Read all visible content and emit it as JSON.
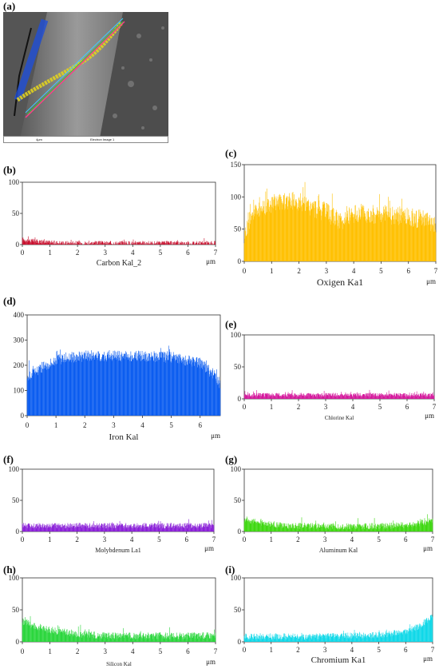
{
  "panel_letters": {
    "a": "(a)",
    "b": "(b)",
    "c": "(c)",
    "d": "(d)",
    "e": "(e)",
    "f": "(f)",
    "g": "(g)",
    "h": "(h)",
    "i": "(i)"
  },
  "sem": {
    "scale_label": "4μm",
    "image_label": "Electron Image 1"
  },
  "chart_data": [
    {
      "id": "b",
      "type": "area",
      "xlabel": "Carbon Kal_2",
      "unit": "μm",
      "xlim": [
        0,
        7
      ],
      "ylim": [
        0,
        100
      ],
      "xticks": [
        0,
        1,
        2,
        3,
        4,
        5,
        6,
        7
      ],
      "yticks": [
        0,
        50,
        100
      ],
      "color": "#c8102e",
      "profile": [
        [
          0,
          8
        ],
        [
          0.3,
          6
        ],
        [
          1,
          3
        ],
        [
          2,
          2
        ],
        [
          3,
          2
        ],
        [
          4,
          2
        ],
        [
          5,
          2
        ],
        [
          6,
          2
        ],
        [
          7,
          2
        ]
      ],
      "noise": 7
    },
    {
      "id": "c",
      "type": "area",
      "xlabel": "Oxigen Ka1",
      "unit": "μm",
      "xlim": [
        0,
        7
      ],
      "ylim": [
        0,
        150
      ],
      "xticks": [
        0,
        1,
        2,
        3,
        4,
        5,
        6,
        7
      ],
      "yticks": [
        0,
        50,
        100,
        150
      ],
      "color": "#ffc000",
      "profile": [
        [
          0,
          38
        ],
        [
          0.3,
          75
        ],
        [
          1,
          88
        ],
        [
          1.5,
          92
        ],
        [
          2,
          88
        ],
        [
          3,
          75
        ],
        [
          3.6,
          58
        ],
        [
          3.7,
          70
        ],
        [
          4.5,
          72
        ],
        [
          5.5,
          70
        ],
        [
          6.5,
          64
        ],
        [
          7,
          55
        ]
      ],
      "noise": 30
    },
    {
      "id": "d",
      "type": "area",
      "xlabel": "Iron Kal",
      "unit": "μm",
      "xlim": [
        0,
        6.7
      ],
      "ylim": [
        0,
        400
      ],
      "xticks": [
        0,
        1,
        2,
        3,
        4,
        5,
        6
      ],
      "yticks": [
        0,
        100,
        200,
        300,
        400
      ],
      "color": "#0a5cf0",
      "profile": [
        [
          0,
          150
        ],
        [
          0.5,
          190
        ],
        [
          1,
          220
        ],
        [
          2,
          235
        ],
        [
          3,
          235
        ],
        [
          4,
          235
        ],
        [
          5,
          230
        ],
        [
          6,
          205
        ],
        [
          6.5,
          160
        ],
        [
          6.7,
          120
        ]
      ],
      "noise": 45
    },
    {
      "id": "e",
      "type": "area",
      "xlabel": "Chlorine  Kal",
      "unit": "μm",
      "xlim": [
        0,
        7
      ],
      "ylim": [
        0,
        100
      ],
      "xticks": [
        0,
        1,
        2,
        3,
        4,
        5,
        6,
        7
      ],
      "yticks": [
        0,
        50,
        100
      ],
      "color": "#d4179c",
      "profile": [
        [
          0,
          6
        ],
        [
          7,
          6
        ]
      ],
      "noise": 6
    },
    {
      "id": "f",
      "type": "area",
      "xlabel": "Molybdenum   La1",
      "unit": "μm",
      "xlim": [
        0,
        7
      ],
      "ylim": [
        0,
        100
      ],
      "xticks": [
        0,
        1,
        2,
        3,
        4,
        5,
        6,
        7
      ],
      "yticks": [
        0,
        50,
        100
      ],
      "color": "#8a1fd8",
      "profile": [
        [
          0,
          9
        ],
        [
          7,
          9
        ]
      ],
      "noise": 9
    },
    {
      "id": "g",
      "type": "area",
      "xlabel": "Aluminum   Kal",
      "unit": "μm",
      "xlim": [
        0,
        7
      ],
      "ylim": [
        0,
        100
      ],
      "xticks": [
        0,
        1,
        2,
        3,
        4,
        5,
        6,
        7
      ],
      "yticks": [
        0,
        50,
        100
      ],
      "color": "#3ed810",
      "profile": [
        [
          0,
          20
        ],
        [
          0.5,
          14
        ],
        [
          1.5,
          9
        ],
        [
          3,
          8
        ],
        [
          5,
          8
        ],
        [
          6,
          10
        ],
        [
          6.7,
          14
        ],
        [
          7,
          18
        ]
      ],
      "noise": 10
    },
    {
      "id": "h",
      "type": "area",
      "xlabel": "Silicon   Kal",
      "unit": "μm",
      "xlim": [
        0,
        7
      ],
      "ylim": [
        0,
        100
      ],
      "xticks": [
        0,
        1,
        2,
        3,
        4,
        5,
        6,
        7
      ],
      "yticks": [
        0,
        50,
        100
      ],
      "color": "#2ad63c",
      "profile": [
        [
          0,
          32
        ],
        [
          0.4,
          25
        ],
        [
          1,
          18
        ],
        [
          2,
          12
        ],
        [
          3,
          9
        ],
        [
          5,
          9
        ],
        [
          6,
          9
        ],
        [
          7,
          10
        ]
      ],
      "noise": 11
    },
    {
      "id": "i",
      "type": "area",
      "xlabel": "Chromium Ka1",
      "unit": "μm",
      "xlim": [
        0,
        7
      ],
      "ylim": [
        0,
        100
      ],
      "xticks": [
        0,
        1,
        2,
        3,
        4,
        5,
        6,
        7
      ],
      "yticks": [
        0,
        50,
        100
      ],
      "color": "#10d8e8",
      "profile": [
        [
          0,
          8
        ],
        [
          3,
          8
        ],
        [
          5,
          10
        ],
        [
          6,
          16
        ],
        [
          6.5,
          24
        ],
        [
          7,
          40
        ]
      ],
      "noise": 10
    }
  ]
}
